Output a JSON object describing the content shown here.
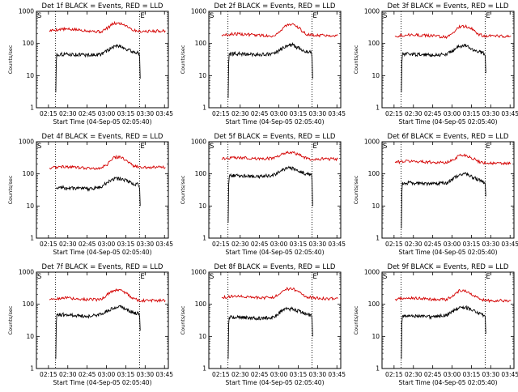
{
  "colors": {
    "events": "#000000",
    "lld": "#d40000",
    "axis": "#000000"
  },
  "chart_data": [
    {
      "type": "line",
      "title": "Det 1f BLACK = Events, RED = LLD",
      "xlabel": "Start Time (04-Sep-05 02:05:40)",
      "ylabel": "Counts/sec",
      "x_ticks": [
        "02:15",
        "02:30",
        "02:45",
        "03:00",
        "03:15",
        "03:30",
        "03:45"
      ],
      "y_ticks": [
        "1",
        "10",
        "100",
        "1000"
      ],
      "y_scale": "log",
      "ylim": [
        1,
        1000
      ],
      "xlim": [
        "02:05:40",
        "03:48:00"
      ],
      "markers": [
        "S",
        "E"
      ],
      "vlines": [
        "02:20:30",
        "03:25:40"
      ],
      "series": [
        {
          "name": "LLD",
          "color": "#d40000",
          "x_minutes": [
            10,
            20,
            30,
            40,
            50,
            55,
            60,
            65,
            70,
            75,
            80,
            90,
            100
          ],
          "y": [
            250,
            280,
            270,
            250,
            230,
            300,
            420,
            420,
            360,
            260,
            240,
            240,
            250
          ]
        },
        {
          "name": "Events",
          "color": "#000000",
          "x_minutes": [
            15,
            15.5,
            20,
            30,
            40,
            50,
            55,
            60,
            65,
            70,
            75,
            80,
            80.5
          ],
          "y": [
            3,
            45,
            46,
            45,
            44,
            45,
            60,
            80,
            85,
            65,
            55,
            50,
            8
          ]
        }
      ]
    },
    {
      "type": "line",
      "title": "Det 2f BLACK = Events, RED = LLD",
      "xlabel": "Start Time (04-Sep-05 02:05:40)",
      "ylabel": "Counts/sec",
      "x_ticks": [
        "02:15",
        "02:30",
        "02:45",
        "03:00",
        "03:15",
        "03:30",
        "03:45"
      ],
      "y_ticks": [
        "1",
        "10",
        "100",
        "1000"
      ],
      "y_scale": "log",
      "ylim": [
        1,
        1000
      ],
      "xlim": [
        "02:05:40",
        "03:48:00"
      ],
      "markers": [
        "S",
        "E"
      ],
      "vlines": [
        "02:20:30",
        "03:25:40"
      ],
      "series": [
        {
          "name": "LLD",
          "color": "#d40000",
          "x_minutes": [
            10,
            20,
            30,
            40,
            50,
            55,
            60,
            65,
            70,
            75,
            80,
            90,
            100
          ],
          "y": [
            180,
            200,
            190,
            180,
            170,
            230,
            370,
            380,
            300,
            200,
            180,
            180,
            180
          ]
        },
        {
          "name": "Events",
          "color": "#000000",
          "x_minutes": [
            15,
            15.5,
            20,
            30,
            40,
            50,
            55,
            60,
            65,
            70,
            75,
            80,
            80.5
          ],
          "y": [
            2,
            45,
            48,
            46,
            45,
            47,
            60,
            85,
            90,
            70,
            58,
            52,
            8
          ]
        }
      ]
    },
    {
      "type": "line",
      "title": "Det 3f BLACK = Events, RED = LLD",
      "xlabel": "Start Time (04-Sep-05 02:05:40)",
      "ylabel": "Counts/sec",
      "x_ticks": [
        "02:15",
        "02:30",
        "02:45",
        "03:00",
        "03:15",
        "03:30",
        "03:45"
      ],
      "y_ticks": [
        "1",
        "10",
        "100",
        "1000"
      ],
      "y_scale": "log",
      "ylim": [
        1,
        1000
      ],
      "xlim": [
        "02:05:40",
        "03:48:00"
      ],
      "markers": [
        "S",
        "E"
      ],
      "vlines": [
        "02:20:30",
        "03:25:40"
      ],
      "series": [
        {
          "name": "LLD",
          "color": "#d40000",
          "x_minutes": [
            10,
            20,
            30,
            40,
            50,
            55,
            60,
            65,
            70,
            75,
            80,
            90,
            100
          ],
          "y": [
            170,
            190,
            180,
            170,
            160,
            210,
            330,
            340,
            280,
            190,
            170,
            170,
            170
          ]
        },
        {
          "name": "Events",
          "color": "#000000",
          "x_minutes": [
            15,
            15.5,
            20,
            30,
            40,
            50,
            55,
            60,
            65,
            70,
            75,
            80,
            80.5
          ],
          "y": [
            3,
            45,
            47,
            45,
            44,
            46,
            60,
            82,
            85,
            66,
            55,
            48,
            12
          ]
        }
      ]
    },
    {
      "type": "line",
      "title": "Det 4f BLACK = Events, RED = LLD",
      "xlabel": "Start Time (04-Sep-05 02:05:40)",
      "ylabel": "Counts/sec",
      "x_ticks": [
        "02:15",
        "02:30",
        "02:45",
        "03:00",
        "03:15",
        "03:30",
        "03:45"
      ],
      "y_ticks": [
        "1",
        "10",
        "100",
        "1000"
      ],
      "y_scale": "log",
      "ylim": [
        1,
        1000
      ],
      "xlim": [
        "02:05:40",
        "03:48:00"
      ],
      "markers": [
        "S",
        "E"
      ],
      "vlines": [
        "02:20:30",
        "03:25:40"
      ],
      "series": [
        {
          "name": "LLD",
          "color": "#d40000",
          "x_minutes": [
            10,
            20,
            30,
            40,
            50,
            55,
            60,
            65,
            70,
            75,
            80,
            90,
            100
          ],
          "y": [
            150,
            170,
            160,
            150,
            150,
            200,
            330,
            330,
            260,
            180,
            160,
            160,
            160
          ]
        },
        {
          "name": "Events",
          "color": "#000000",
          "x_minutes": [
            15,
            15.5,
            20,
            30,
            40,
            50,
            55,
            60,
            65,
            70,
            75,
            80,
            80.5
          ],
          "y": [
            35,
            38,
            37,
            35,
            34,
            38,
            55,
            70,
            72,
            60,
            50,
            45,
            10
          ]
        }
      ]
    },
    {
      "type": "line",
      "title": "Det 5f BLACK = Events, RED = LLD",
      "xlabel": "Start Time (04-Sep-05 02:05:40)",
      "ylabel": "Counts/sec",
      "x_ticks": [
        "02:15",
        "02:30",
        "02:45",
        "03:00",
        "03:15",
        "03:30",
        "03:45"
      ],
      "y_ticks": [
        "1",
        "10",
        "100",
        "1000"
      ],
      "y_scale": "log",
      "ylim": [
        1,
        1000
      ],
      "xlim": [
        "02:05:40",
        "03:48:00"
      ],
      "markers": [
        "S",
        "E"
      ],
      "vlines": [
        "02:20:30",
        "03:25:40"
      ],
      "series": [
        {
          "name": "LLD",
          "color": "#d40000",
          "x_minutes": [
            10,
            20,
            30,
            40,
            50,
            55,
            60,
            65,
            70,
            75,
            80,
            90,
            100
          ],
          "y": [
            290,
            320,
            310,
            300,
            300,
            380,
            470,
            470,
            400,
            310,
            280,
            290,
            290
          ]
        },
        {
          "name": "Events",
          "color": "#000000",
          "x_minutes": [
            15,
            15.5,
            20,
            30,
            40,
            50,
            55,
            60,
            65,
            70,
            75,
            80,
            80.5
          ],
          "y": [
            3,
            85,
            90,
            85,
            82,
            90,
            120,
            150,
            150,
            120,
            100,
            90,
            10
          ]
        }
      ]
    },
    {
      "type": "line",
      "title": "Det 6f BLACK = Events, RED = LLD",
      "xlabel": "Start Time (04-Sep-05 02:05:40)",
      "ylabel": "Counts/sec",
      "x_ticks": [
        "02:15",
        "02:30",
        "02:45",
        "03:00",
        "03:15",
        "03:30",
        "03:45"
      ],
      "y_ticks": [
        "1",
        "10",
        "100",
        "1000"
      ],
      "y_scale": "log",
      "ylim": [
        1,
        1000
      ],
      "xlim": [
        "02:05:40",
        "03:48:00"
      ],
      "markers": [
        "S",
        "E"
      ],
      "vlines": [
        "02:20:30",
        "03:25:40"
      ],
      "series": [
        {
          "name": "LLD",
          "color": "#d40000",
          "x_minutes": [
            10,
            20,
            30,
            40,
            50,
            55,
            60,
            65,
            70,
            75,
            80,
            90,
            100
          ],
          "y": [
            230,
            250,
            240,
            230,
            220,
            270,
            380,
            380,
            310,
            240,
            220,
            210,
            210
          ]
        },
        {
          "name": "Events",
          "color": "#000000",
          "x_minutes": [
            15,
            15.5,
            20,
            30,
            40,
            50,
            55,
            60,
            65,
            70,
            75,
            80,
            80.5
          ],
          "y": [
            2,
            50,
            52,
            50,
            48,
            52,
            70,
            95,
            100,
            80,
            65,
            50,
            20
          ]
        }
      ]
    },
    {
      "type": "line",
      "title": "Det 7f BLACK = Events, RED = LLD",
      "xlabel": "Start Time (04-Sep-05 02:05:40)",
      "ylabel": "Counts/sec",
      "x_ticks": [
        "02:15",
        "02:30",
        "02:45",
        "03:00",
        "03:15",
        "03:30",
        "03:45"
      ],
      "y_ticks": [
        "1",
        "10",
        "100",
        "1000"
      ],
      "y_scale": "log",
      "ylim": [
        1,
        1000
      ],
      "xlim": [
        "02:05:40",
        "03:48:00"
      ],
      "markers": [
        "S",
        "E"
      ],
      "vlines": [
        "02:20:30",
        "03:25:40"
      ],
      "series": [
        {
          "name": "LLD",
          "color": "#d40000",
          "x_minutes": [
            10,
            20,
            30,
            40,
            50,
            55,
            60,
            65,
            70,
            75,
            80,
            90,
            100
          ],
          "y": [
            140,
            160,
            150,
            140,
            140,
            200,
            280,
            280,
            220,
            150,
            130,
            130,
            130
          ]
        },
        {
          "name": "Events",
          "color": "#000000",
          "x_minutes": [
            15,
            15.5,
            20,
            30,
            40,
            50,
            55,
            60,
            65,
            70,
            75,
            80,
            80.5
          ],
          "y": [
            2,
            45,
            48,
            45,
            42,
            48,
            62,
            80,
            85,
            68,
            55,
            50,
            15
          ]
        }
      ]
    },
    {
      "type": "line",
      "title": "Det 8f BLACK = Events, RED = LLD",
      "xlabel": "Start Time (04-Sep-05 02:05:40)",
      "ylabel": "Counts/sec",
      "x_ticks": [
        "02:15",
        "02:30",
        "02:45",
        "03:00",
        "03:15",
        "03:30",
        "03:45"
      ],
      "y_ticks": [
        "1",
        "10",
        "100",
        "1000"
      ],
      "y_scale": "log",
      "ylim": [
        1,
        1000
      ],
      "xlim": [
        "02:05:40",
        "03:48:00"
      ],
      "markers": [
        "S",
        "E"
      ],
      "vlines": [
        "02:20:30",
        "03:25:40"
      ],
      "series": [
        {
          "name": "LLD",
          "color": "#d40000",
          "x_minutes": [
            10,
            20,
            30,
            40,
            50,
            55,
            60,
            65,
            70,
            75,
            80,
            90,
            100
          ],
          "y": [
            160,
            180,
            170,
            160,
            160,
            220,
            300,
            300,
            240,
            170,
            160,
            150,
            150
          ]
        },
        {
          "name": "Events",
          "color": "#000000",
          "x_minutes": [
            15,
            15.5,
            20,
            30,
            40,
            50,
            55,
            60,
            65,
            70,
            75,
            80,
            80.5
          ],
          "y": [
            2,
            40,
            40,
            38,
            36,
            40,
            55,
            70,
            72,
            60,
            50,
            45,
            10
          ]
        }
      ]
    },
    {
      "type": "line",
      "title": "Det 9f BLACK = Events, RED = LLD",
      "xlabel": "Start Time (04-Sep-05 02:05:40)",
      "ylabel": "Counts/sec",
      "x_ticks": [
        "02:15",
        "02:30",
        "02:45",
        "03:00",
        "03:15",
        "03:30",
        "03:45"
      ],
      "y_ticks": [
        "1",
        "10",
        "100",
        "1000"
      ],
      "y_scale": "log",
      "ylim": [
        1,
        1000
      ],
      "xlim": [
        "02:05:40",
        "03:48:00"
      ],
      "markers": [
        "S",
        "E"
      ],
      "vlines": [
        "02:20:30",
        "03:25:40"
      ],
      "series": [
        {
          "name": "LLD",
          "color": "#d40000",
          "x_minutes": [
            10,
            20,
            30,
            40,
            50,
            55,
            60,
            65,
            70,
            75,
            80,
            90,
            100
          ],
          "y": [
            140,
            160,
            150,
            140,
            140,
            190,
            260,
            260,
            200,
            150,
            130,
            130,
            130
          ]
        },
        {
          "name": "Events",
          "color": "#000000",
          "x_minutes": [
            15,
            15.5,
            20,
            30,
            40,
            50,
            55,
            60,
            65,
            70,
            75,
            80,
            80.5
          ],
          "y": [
            2,
            45,
            45,
            42,
            40,
            45,
            60,
            78,
            80,
            65,
            52,
            45,
            12
          ]
        }
      ]
    }
  ]
}
